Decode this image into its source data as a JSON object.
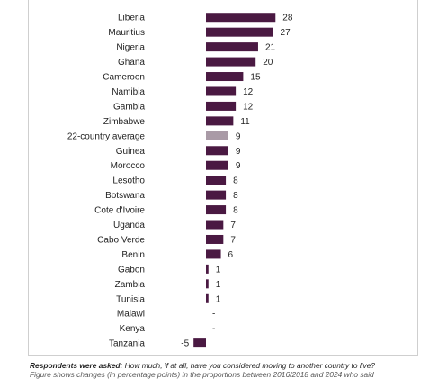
{
  "chart_data": {
    "type": "bar",
    "orientation": "horizontal",
    "categories": [
      "Liberia",
      "Mauritius",
      "Nigeria",
      "Ghana",
      "Cameroon",
      "Namibia",
      "Gambia",
      "Zimbabwe",
      "22-country average",
      "Guinea",
      "Morocco",
      "Lesotho",
      "Botswana",
      "Cote d'Ivoire",
      "Uganda",
      "Cabo Verde",
      "Benin",
      "Gabon",
      "Zambia",
      "Tunisia",
      "Malawi",
      "Kenya",
      "Tanzania"
    ],
    "values": [
      28,
      27,
      21,
      20,
      15,
      12,
      12,
      11,
      9,
      9,
      9,
      8,
      8,
      8,
      7,
      7,
      6,
      1,
      1,
      1,
      null,
      null,
      -5
    ],
    "value_labels": [
      "28",
      "27",
      "21",
      "20",
      "15",
      "12",
      "12",
      "11",
      "9",
      "9",
      "9",
      "8",
      "8",
      "8",
      "7",
      "7",
      "6",
      "1",
      "1",
      "1",
      "-",
      "-",
      "-5"
    ],
    "highlight_category": "22-country average",
    "colors": {
      "bar": "#4a1942",
      "average_bar": "#a99aa6"
    }
  },
  "footnote": {
    "line1_bold": "Respondents were asked:",
    "line1_text": " How much, if at all, have you considered moving to another country to live?",
    "line2_text": "Figure shows changes (in percentage points) in the proportions between 2016/2018 and 2024 who said"
  }
}
